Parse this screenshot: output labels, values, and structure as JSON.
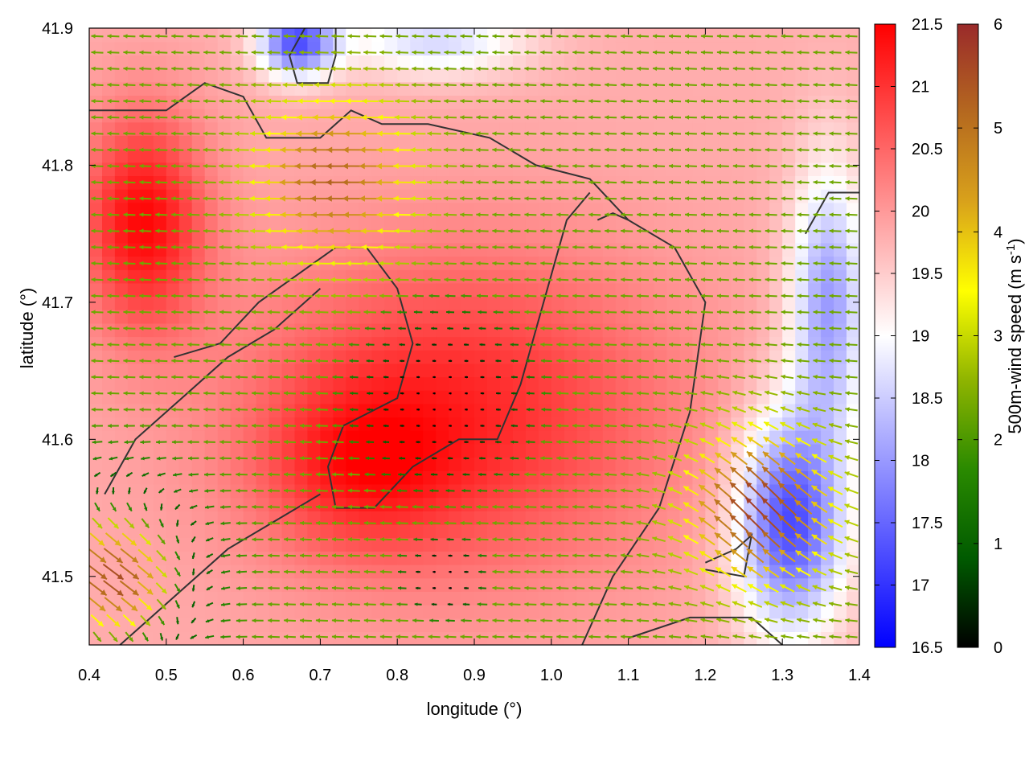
{
  "chart_data": {
    "type": "heatmap",
    "subtype": "color-map with wind-vector overlay and contours",
    "xlabel": "longitude (°)",
    "ylabel": "latitude (°)",
    "xlim": [
      0.4,
      1.4
    ],
    "ylim": [
      41.45,
      41.9
    ],
    "x_ticks": [
      "0.4",
      "0.5",
      "0.6",
      "0.7",
      "0.8",
      "0.9",
      "1.0",
      "1.1",
      "1.2",
      "1.3",
      "1.4"
    ],
    "y_ticks": [
      "41.5",
      "41.6",
      "41.7",
      "41.8",
      "41.9"
    ],
    "colorbar_temperature": {
      "label": "",
      "range": [
        16.5,
        21.5
      ],
      "ticks": [
        "16.5",
        "17",
        "17.5",
        "18",
        "18.5",
        "19",
        "19.5",
        "20",
        "20.5",
        "21",
        "21.5"
      ],
      "colors": [
        "#0000ff",
        "#ffffff",
        "#ff0000"
      ]
    },
    "colorbar_wind": {
      "label": "500m-wind speed (m s",
      "label_sup": "-1",
      "label_end": ")",
      "range": [
        0,
        6
      ],
      "ticks": [
        "0",
        "1",
        "2",
        "3",
        "4",
        "5",
        "6"
      ],
      "colors": [
        "#000000",
        "#005a00",
        "#2a8a00",
        "#8fb400",
        "#ffff00",
        "#d9a21b",
        "#b5691f",
        "#9a2a2a"
      ]
    },
    "temperature_field": {
      "background": 19.8,
      "features": [
        {
          "lon": 0.88,
          "lat": 41.62,
          "amplitude": 1.3,
          "spread_lon": 0.28,
          "spread_lat": 0.12
        },
        {
          "lon": 0.47,
          "lat": 41.76,
          "amplitude": 1.6,
          "spread_lon": 0.08,
          "spread_lat": 0.08
        },
        {
          "lon": 0.75,
          "lat": 41.58,
          "amplitude": 0.8,
          "spread_lon": 0.12,
          "spread_lat": 0.06
        },
        {
          "lon": 1.31,
          "lat": 41.54,
          "amplitude": -2.6,
          "spread_lon": 0.07,
          "spread_lat": 0.08
        },
        {
          "lon": 1.36,
          "lat": 41.7,
          "amplitude": -1.8,
          "spread_lon": 0.05,
          "spread_lat": 0.1
        },
        {
          "lon": 0.67,
          "lat": 41.89,
          "amplitude": -2.5,
          "spread_lon": 0.05,
          "spread_lat": 0.025
        },
        {
          "lon": 0.85,
          "lat": 41.89,
          "amplitude": -1.2,
          "spread_lon": 0.12,
          "spread_lat": 0.025
        }
      ]
    },
    "wind_field": {
      "calm_centers": [
        {
          "lon": 0.86,
          "lat": 41.63,
          "radius": 0.15
        },
        {
          "lon": 0.86,
          "lat": 41.5,
          "radius": 0.07
        }
      ],
      "prevailing_direction": "westward",
      "fast_zones": [
        {
          "lon": 1.27,
          "lat": 41.55,
          "speed": 5.8,
          "direction": "northwest"
        },
        {
          "lon": 0.72,
          "lat": 41.79,
          "speed": 5.2,
          "direction": "west"
        },
        {
          "lon": 0.43,
          "lat": 41.5,
          "speed": 5.5,
          "direction": "southeast"
        }
      ]
    },
    "contours": [
      [
        [
          0.68,
          41.9
        ],
        [
          0.66,
          41.88
        ],
        [
          0.67,
          41.86
        ],
        [
          0.71,
          41.86
        ],
        [
          0.72,
          41.88
        ],
        [
          0.72,
          41.9
        ]
      ],
      [
        [
          0.4,
          41.84
        ],
        [
          0.5,
          41.84
        ],
        [
          0.55,
          41.86
        ],
        [
          0.6,
          41.85
        ],
        [
          0.63,
          41.82
        ],
        [
          0.7,
          41.82
        ],
        [
          0.74,
          41.84
        ],
        [
          0.78,
          41.83
        ],
        [
          0.84,
          41.83
        ],
        [
          0.92,
          41.82
        ],
        [
          0.98,
          41.8
        ],
        [
          1.05,
          41.79
        ],
        [
          1.1,
          41.76
        ],
        [
          1.16,
          41.74
        ],
        [
          1.2,
          41.7
        ],
        [
          1.18,
          41.62
        ],
        [
          1.14,
          41.55
        ],
        [
          1.08,
          41.5
        ],
        [
          1.04,
          41.45
        ]
      ],
      [
        [
          0.51,
          41.66
        ],
        [
          0.57,
          41.67
        ],
        [
          0.62,
          41.7
        ],
        [
          0.67,
          41.72
        ],
        [
          0.72,
          41.74
        ],
        [
          0.76,
          41.74
        ],
        [
          0.8,
          41.71
        ],
        [
          0.82,
          41.67
        ],
        [
          0.8,
          41.63
        ],
        [
          0.73,
          41.61
        ],
        [
          0.71,
          41.58
        ],
        [
          0.72,
          41.55
        ],
        [
          0.77,
          41.55
        ],
        [
          0.82,
          41.58
        ],
        [
          0.88,
          41.6
        ],
        [
          0.93,
          41.6
        ],
        [
          0.96,
          41.64
        ],
        [
          0.98,
          41.68
        ],
        [
          1.0,
          41.72
        ],
        [
          1.02,
          41.76
        ],
        [
          1.05,
          41.78
        ]
      ],
      [
        [
          0.42,
          41.56
        ],
        [
          0.46,
          41.6
        ],
        [
          0.52,
          41.63
        ],
        [
          0.58,
          41.66
        ],
        [
          0.64,
          41.68
        ],
        [
          0.7,
          41.71
        ]
      ],
      [
        [
          0.44,
          41.45
        ],
        [
          0.52,
          41.49
        ],
        [
          0.58,
          41.52
        ],
        [
          0.64,
          41.54
        ],
        [
          0.7,
          41.56
        ]
      ],
      [
        [
          1.06,
          41.76
        ],
        [
          1.08,
          41.765
        ],
        [
          1.1,
          41.76
        ]
      ],
      [
        [
          1.2,
          41.51
        ],
        [
          1.24,
          41.52
        ],
        [
          1.26,
          41.53
        ],
        [
          1.25,
          41.5
        ],
        [
          1.2,
          41.505
        ]
      ],
      [
        [
          1.1,
          41.455
        ],
        [
          1.18,
          41.47
        ],
        [
          1.26,
          41.47
        ],
        [
          1.3,
          41.45
        ]
      ],
      [
        [
          1.33,
          41.75
        ],
        [
          1.36,
          41.78
        ],
        [
          1.4,
          41.78
        ]
      ]
    ]
  }
}
